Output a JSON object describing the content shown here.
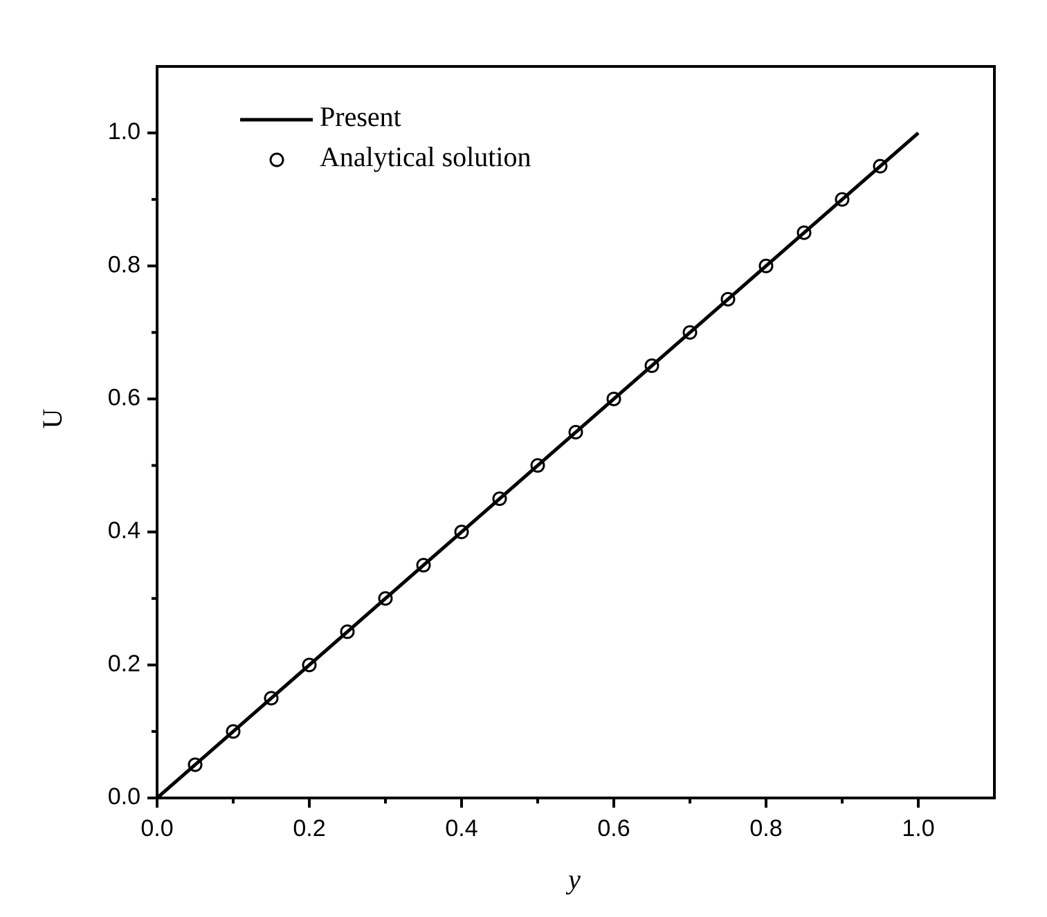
{
  "chart_data": {
    "type": "line",
    "x_label": "y",
    "y_label": "U",
    "xlim": [
      0,
      1.1
    ],
    "ylim": [
      0,
      1.1
    ],
    "xticks": [
      {
        "value": 0,
        "label": "0.0"
      },
      0.2,
      0.4,
      0.6,
      0.8,
      {
        "value": 1,
        "label": "1.0"
      }
    ],
    "yticks": [
      {
        "value": 0,
        "label": "0.0"
      },
      0.2,
      0.4,
      0.6,
      0.8,
      {
        "value": 1,
        "label": "1.0"
      }
    ],
    "xminorticks": [
      0.1,
      0.3,
      0.5,
      0.7,
      0.9
    ],
    "yminorticks": [
      0.1,
      0.3,
      0.5,
      0.7,
      0.9
    ],
    "legend": "upper-left",
    "series": [
      {
        "name": "Present",
        "color": "#000000",
        "mode": "line",
        "x": [
          0,
          1
        ],
        "values": [
          0,
          1
        ]
      },
      {
        "name": "Analytical solution",
        "color": "#000000",
        "mode": "markers",
        "x": [
          0.05,
          0.1,
          0.15,
          0.2,
          0.25,
          0.3,
          0.35,
          0.4,
          0.45,
          0.5,
          0.55,
          0.6,
          0.65,
          0.7,
          0.75,
          0.8,
          0.85,
          0.9,
          0.95
        ],
        "values": [
          0.05,
          0.1,
          0.15,
          0.2,
          0.25,
          0.3,
          0.35,
          0.4,
          0.45,
          0.5,
          0.55,
          0.6,
          0.65,
          0.7,
          0.75,
          0.8,
          0.85,
          0.9,
          0.95
        ]
      }
    ]
  }
}
